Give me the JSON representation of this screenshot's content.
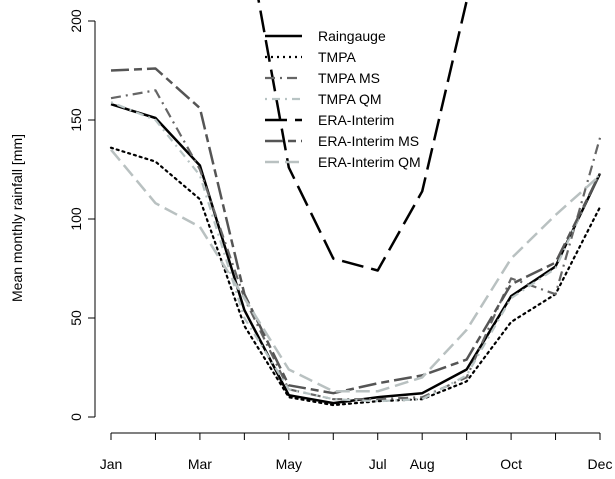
{
  "chart_data": {
    "type": "line",
    "title": "",
    "xlabel": "",
    "ylabel": "Mean monthly rainfall [mm]",
    "ylim": [
      0,
      200
    ],
    "x_months": [
      1,
      2,
      3,
      4,
      5,
      6,
      7,
      8,
      9,
      10,
      11,
      12
    ],
    "x_tick_labels": [
      {
        "month": 1,
        "label": "Jan"
      },
      {
        "month": 3,
        "label": "Mar"
      },
      {
        "month": 5,
        "label": "May"
      },
      {
        "month": 7,
        "label": "Jul"
      },
      {
        "month": 8,
        "label": "Aug"
      },
      {
        "month": 10,
        "label": "Oct"
      },
      {
        "month": 12,
        "label": "Dec"
      }
    ],
    "y_ticks": [
      0,
      50,
      100,
      150,
      200
    ],
    "y_tick_labels": [
      "0",
      "50",
      "100",
      "150",
      "200"
    ],
    "legend_position": "top-center",
    "series": [
      {
        "name": "Raingauge",
        "color": "#000000",
        "dash": "solid",
        "width": 2.5,
        "values": [
          158,
          151,
          127,
          54,
          11,
          7,
          10,
          12,
          24,
          61,
          76,
          123
        ]
      },
      {
        "name": "TMPA",
        "color": "#000000",
        "dash": "dotted",
        "width": 2.2,
        "values": [
          136,
          129,
          110,
          46,
          10,
          6,
          8,
          9,
          18,
          48,
          62,
          106
        ]
      },
      {
        "name": "TMPA MS",
        "color": "#666666",
        "dash": "dashdot",
        "width": 2.2,
        "values": [
          161,
          165,
          125,
          60,
          14,
          9,
          9,
          10,
          20,
          70,
          62,
          141
        ]
      },
      {
        "name": "TMPA QM",
        "color": "#b8c4c4",
        "dash": "dotdash",
        "width": 2.2,
        "values": [
          159,
          150,
          122,
          50,
          14,
          9,
          8,
          9,
          21,
          60,
          75,
          124
        ]
      },
      {
        "name": "ERA-Interim",
        "color": "#000000",
        "dash": "longdash",
        "width": 2.5,
        "values": [
          null,
          null,
          null,
          250,
          126,
          80,
          74,
          114,
          210,
          null,
          null,
          null
        ]
      },
      {
        "name": "ERA-Interim MS",
        "color": "#555555",
        "dash": "twodash",
        "width": 2.5,
        "values": [
          175,
          176,
          156,
          62,
          16,
          12,
          17,
          21,
          29,
          67,
          78,
          123
        ]
      },
      {
        "name": "ERA-Interim QM",
        "color": "#b9c1c1",
        "dash": "dash",
        "width": 2.5,
        "values": [
          135,
          108,
          96,
          60,
          24,
          13,
          13,
          20,
          44,
          80,
          102,
          122
        ]
      }
    ]
  }
}
